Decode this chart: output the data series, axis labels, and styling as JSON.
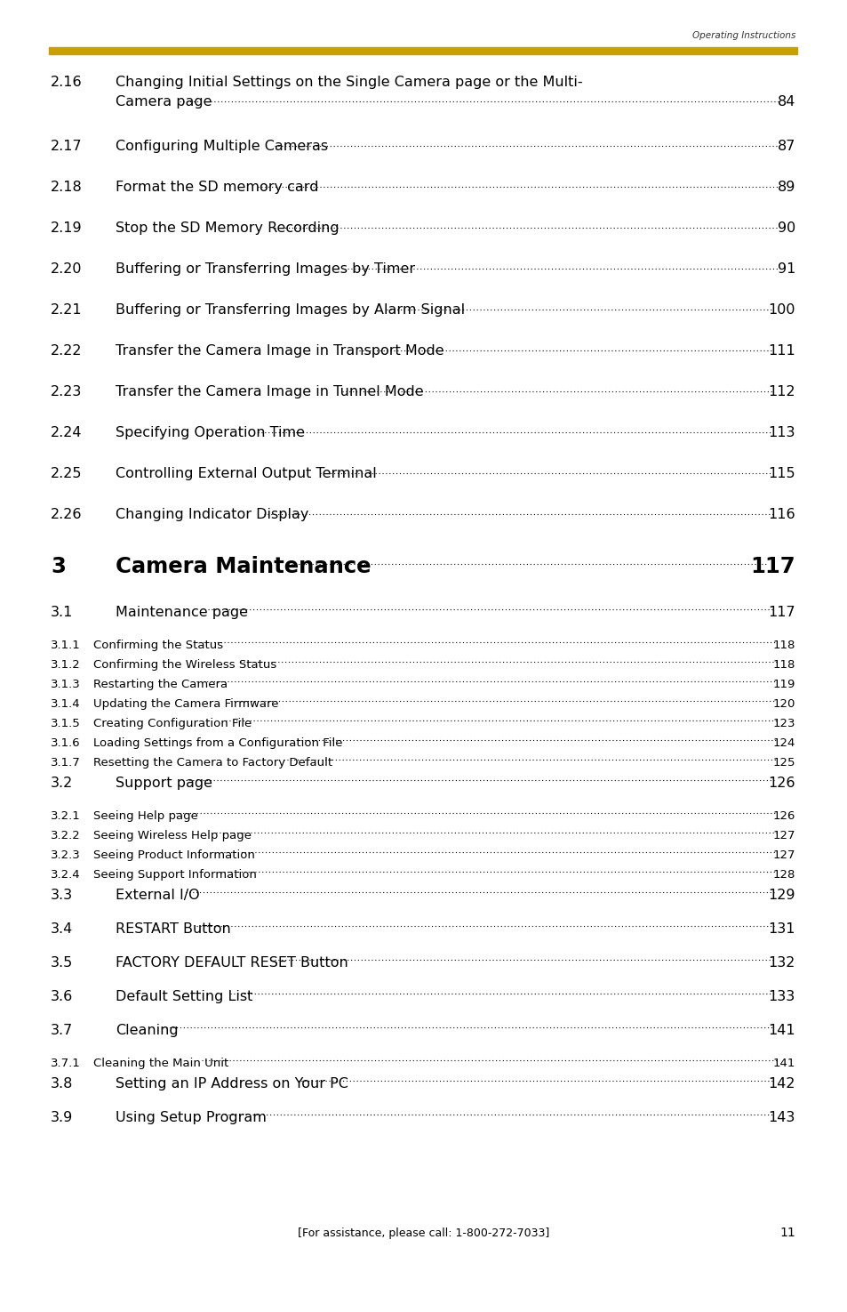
{
  "background_color": "#ffffff",
  "header_text": "Operating Instructions",
  "gold_bar_color": "#C8A000",
  "footer_text": "[For assistance, please call: 1-800-272-7033]",
  "footer_page": "11",
  "toc_entries": [
    {
      "num": "2.16",
      "title1": "Changing Initial Settings on the Single Camera page or the Multi-",
      "title2": "Camera page",
      "page": "84",
      "two_line": true
    },
    {
      "num": "2.17",
      "title1": "Configuring Multiple Cameras",
      "title2": "",
      "page": "87",
      "two_line": false
    },
    {
      "num": "2.18",
      "title1": "Format the SD memory card",
      "title2": "",
      "page": "89",
      "two_line": false
    },
    {
      "num": "2.19",
      "title1": "Stop the SD Memory Recording",
      "title2": "",
      "page": "90",
      "two_line": false
    },
    {
      "num": "2.20",
      "title1": "Buffering or Transferring Images by Timer",
      "title2": "",
      "page": "91",
      "two_line": false
    },
    {
      "num": "2.21",
      "title1": "Buffering or Transferring Images by Alarm Signal",
      "title2": "",
      "page": "100",
      "two_line": false
    },
    {
      "num": "2.22",
      "title1": "Transfer the Camera Image in Transport Mode",
      "title2": "",
      "page": "111",
      "two_line": false
    },
    {
      "num": "2.23",
      "title1": "Transfer the Camera Image in Tunnel Mode",
      "title2": "",
      "page": "112",
      "two_line": false
    },
    {
      "num": "2.24",
      "title1": "Specifying Operation Time",
      "title2": "",
      "page": "113",
      "two_line": false
    },
    {
      "num": "2.25",
      "title1": "Controlling External Output Terminal",
      "title2": "",
      "page": "115",
      "two_line": false
    },
    {
      "num": "2.26",
      "title1": "Changing Indicator Display",
      "title2": "",
      "page": "116",
      "two_line": false
    }
  ],
  "chapter_header": {
    "num": "3",
    "title": "Camera Maintenance",
    "page": "117"
  },
  "sub_entries": [
    {
      "num": "3.1",
      "title": "Maintenance page",
      "page": "117",
      "small": false
    },
    {
      "num": "3.1.1",
      "title": "Confirming the Status",
      "page": "118",
      "small": true
    },
    {
      "num": "3.1.2",
      "title": "Confirming the Wireless Status",
      "page": "118",
      "small": true
    },
    {
      "num": "3.1.3",
      "title": "Restarting the Camera",
      "page": "119",
      "small": true
    },
    {
      "num": "3.1.4",
      "title": "Updating the Camera Firmware",
      "page": "120",
      "small": true
    },
    {
      "num": "3.1.5",
      "title": "Creating Configuration File",
      "page": "123",
      "small": true
    },
    {
      "num": "3.1.6",
      "title": "Loading Settings from a Configuration File",
      "page": "124",
      "small": true
    },
    {
      "num": "3.1.7",
      "title": "Resetting the Camera to Factory Default",
      "page": "125",
      "small": true
    },
    {
      "num": "3.2",
      "title": "Support page",
      "page": "126",
      "small": false
    },
    {
      "num": "3.2.1",
      "title": "Seeing Help page",
      "page": "126",
      "small": true
    },
    {
      "num": "3.2.2",
      "title": "Seeing Wireless Help page",
      "page": "127",
      "small": true
    },
    {
      "num": "3.2.3",
      "title": "Seeing Product Information",
      "page": "127",
      "small": true
    },
    {
      "num": "3.2.4",
      "title": "Seeing Support Information",
      "page": "128",
      "small": true
    },
    {
      "num": "3.3",
      "title": "External I/O",
      "page": "129",
      "small": false
    },
    {
      "num": "3.4",
      "title": "RESTART Button",
      "page": "131",
      "small": false
    },
    {
      "num": "3.5",
      "title": "FACTORY DEFAULT RESET Button",
      "page": "132",
      "small": false
    },
    {
      "num": "3.6",
      "title": "Default Setting List",
      "page": "133",
      "small": false
    },
    {
      "num": "3.7",
      "title": "Cleaning",
      "page": "141",
      "small": false
    },
    {
      "num": "3.7.1",
      "title": "Cleaning the Main Unit",
      "page": "141",
      "small": true
    },
    {
      "num": "3.8",
      "title": "Setting an IP Address on Your PC",
      "page": "142",
      "small": false
    },
    {
      "num": "3.9",
      "title": "Using Setup Program",
      "page": "143",
      "small": false
    }
  ]
}
